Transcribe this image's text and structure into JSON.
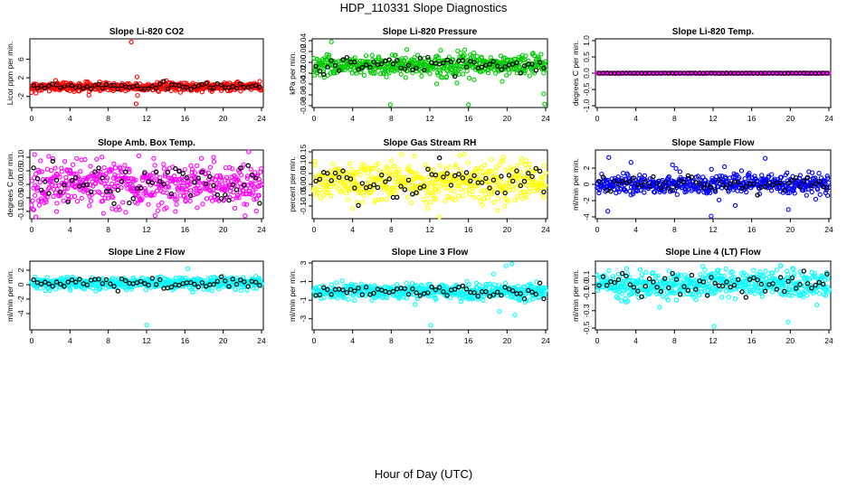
{
  "figure": {
    "title": "HDP_110331  Slope Diagnostics",
    "xlabel": "Hour of Day (UTC)",
    "highlight_color": "#000000"
  },
  "chart_data": [
    {
      "type": "scatter",
      "title": "Slope Li-820 CO2",
      "ylabel": "Licor ppm per min.",
      "color": "#ff0000",
      "xlim": [
        0,
        24
      ],
      "xticks": [
        0,
        4,
        8,
        12,
        16,
        20,
        24
      ],
      "ylim": [
        -4,
        10
      ],
      "yticks": [
        -2,
        2,
        6
      ],
      "typical": {
        "base": 0.1,
        "spread": 0.45
      },
      "outliers": [
        [
          10.4,
          9.7
        ],
        [
          11.0,
          2.2
        ],
        [
          10.9,
          -3.6
        ],
        [
          3.3,
          1.0
        ],
        [
          2.8,
          0.7
        ],
        [
          3.6,
          0.9
        ]
      ]
    },
    {
      "type": "scatter",
      "title": "Slope Li-820 Pressure",
      "ylabel": "kPa per min.",
      "color": "#00cc00",
      "xlim": [
        0,
        24
      ],
      "xticks": [
        0,
        4,
        8,
        12,
        16,
        20,
        24
      ],
      "ylim": [
        -0.08,
        0.04
      ],
      "yticks": [
        0.04,
        0.02,
        0,
        -0.02,
        -0.04,
        -0.06,
        -0.08
      ],
      "typical": {
        "base": -0.005,
        "spread": 0.009
      },
      "outliers": [
        [
          1.8,
          0.038
        ],
        [
          7.9,
          -0.078
        ],
        [
          16.0,
          -0.078
        ],
        [
          23.9,
          -0.077
        ],
        [
          23.8,
          -0.058
        ],
        [
          14.8,
          -0.038
        ],
        [
          9.5,
          -0.028
        ],
        [
          19.5,
          -0.035
        ]
      ]
    },
    {
      "type": "scatter",
      "title": "Slope Li-820 Temp.",
      "ylabel": "degrees C per min.",
      "color": "#ff00ff",
      "xlim": [
        0,
        24
      ],
      "xticks": [
        0,
        4,
        8,
        12,
        16,
        20,
        24
      ],
      "ylim": [
        -1,
        1
      ],
      "yticks": [
        -1.0,
        -0.5,
        0.0,
        0.5,
        1.0
      ],
      "typical": {
        "base": 0.0,
        "spread": 0.002
      },
      "outliers": []
    },
    {
      "type": "scatter",
      "title": "Slope Amb. Box Temp.",
      "ylabel": "degrees C per min.",
      "color": "#ff00ff",
      "xlim": [
        0,
        24
      ],
      "xticks": [
        0,
        4,
        8,
        12,
        16,
        20,
        24
      ],
      "ylim": [
        -0.12,
        0.12
      ],
      "yticks": [
        -0.1,
        -0.05,
        0.0,
        0.05,
        0.1
      ],
      "typical": {
        "base": 0.0,
        "spread": 0.04
      },
      "outliers": [
        [
          0.3,
          0.11
        ],
        [
          2.6,
          -0.1
        ],
        [
          8.4,
          -0.09
        ],
        [
          15.0,
          -0.1
        ],
        [
          5.2,
          0.09
        ],
        [
          19.0,
          0.1
        ]
      ]
    },
    {
      "type": "scatter",
      "title": "Slope Gas Stream RH",
      "ylabel": "percent per min.",
      "color": "#ffff00",
      "xlim": [
        0,
        24
      ],
      "xticks": [
        0,
        4,
        8,
        12,
        16,
        20,
        24
      ],
      "ylim": [
        -0.15,
        0.15
      ],
      "yticks": [
        -0.1,
        -0.05,
        0.0,
        0.05,
        0.1,
        0.15
      ],
      "typical": {
        "base": 0.01,
        "spread": 0.045
      },
      "outliers": [
        [
          13.0,
          -0.15
        ],
        [
          10.4,
          0.13
        ],
        [
          4.0,
          -0.11
        ],
        [
          19.6,
          0.11
        ],
        [
          22.0,
          0.11
        ]
      ]
    },
    {
      "type": "scatter",
      "title": "Slope Sample Flow",
      "ylabel": "ml/min per min.",
      "color": "#0000ff",
      "xlim": [
        0,
        24
      ],
      "xticks": [
        0,
        4,
        8,
        12,
        16,
        20,
        24
      ],
      "ylim": [
        -4,
        4
      ],
      "yticks": [
        -4,
        -2,
        0,
        2
      ],
      "typical": {
        "base": 0.0,
        "spread": 0.6
      },
      "outliers": [
        [
          1.2,
          3.3
        ],
        [
          11.8,
          -3.9
        ],
        [
          17.4,
          3.2
        ],
        [
          19.8,
          -3.1
        ],
        [
          1.1,
          -3.3
        ],
        [
          3.5,
          2.7
        ],
        [
          7.8,
          2.4
        ],
        [
          14.3,
          -2.6
        ]
      ]
    },
    {
      "type": "scatter",
      "title": "Slope Line 2 Flow",
      "ylabel": "ml/min per min.",
      "color": "#00ffff",
      "xlim": [
        0,
        24
      ],
      "xticks": [
        0,
        4,
        8,
        12,
        16,
        20,
        24
      ],
      "ylim": [
        -6,
        3
      ],
      "yticks": [
        -4,
        -2,
        0,
        2
      ],
      "typical": {
        "base": 0.2,
        "spread": 0.4
      },
      "outliers": [
        [
          12.0,
          -5.6
        ],
        [
          16.3,
          2.2
        ]
      ]
    },
    {
      "type": "scatter",
      "title": "Slope Line 3 Flow",
      "ylabel": "ml/min per min.",
      "color": "#00ffff",
      "xlim": [
        0,
        24
      ],
      "xticks": [
        0,
        4,
        8,
        12,
        16,
        20,
        24
      ],
      "ylim": [
        -4,
        3
      ],
      "yticks": [
        -3,
        -1,
        1,
        3
      ],
      "typical": {
        "base": -0.1,
        "spread": 0.4
      },
      "outliers": [
        [
          12.1,
          -3.7
        ],
        [
          19.9,
          2.7
        ],
        [
          20.5,
          2.9
        ],
        [
          19.2,
          -2.2
        ],
        [
          20.8,
          -2.6
        ],
        [
          18.6,
          1.8
        ]
      ]
    },
    {
      "type": "scatter",
      "title": "Slope Line 4 (LT) Flow",
      "ylabel": "ml/min per min.",
      "color": "#00ffff",
      "xlim": [
        0,
        24
      ],
      "xticks": [
        0,
        4,
        8,
        12,
        16,
        20,
        24
      ],
      "ylim": [
        -0.5,
        0.25
      ],
      "yticks": [
        -0.5,
        -0.3,
        -0.1,
        0.0,
        0.1
      ],
      "typical": {
        "base": 0.0,
        "spread": 0.08
      },
      "outliers": [
        [
          12.1,
          -0.48
        ],
        [
          19.8,
          -0.43
        ],
        [
          19.0,
          0.22
        ],
        [
          20.3,
          0.18
        ],
        [
          3.0,
          -0.2
        ]
      ]
    }
  ]
}
